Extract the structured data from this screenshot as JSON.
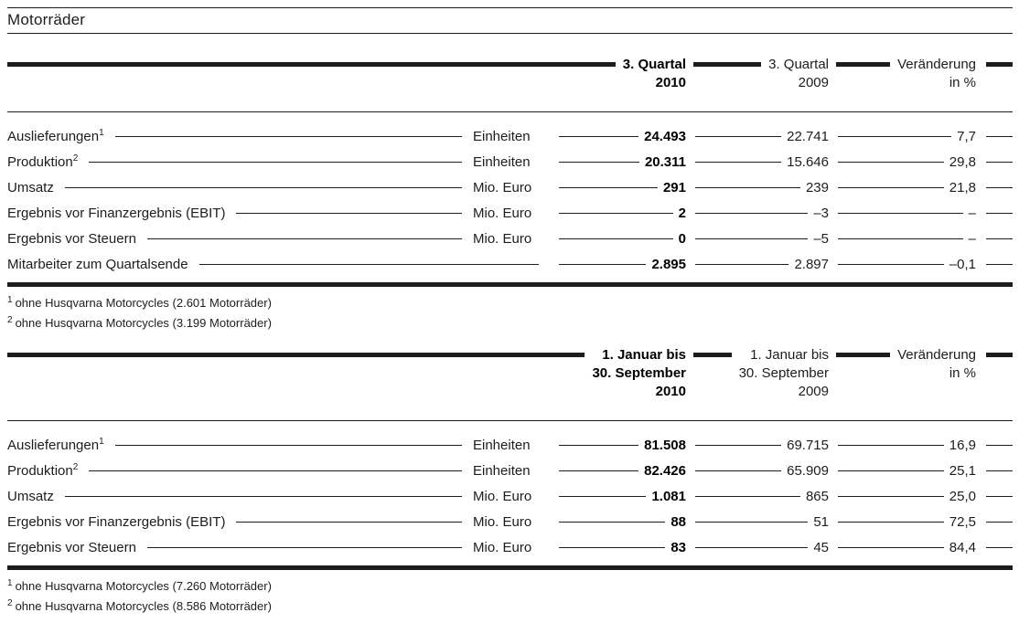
{
  "report": {
    "title": "Motorräder"
  },
  "tables": [
    {
      "columns": [
        {
          "lines": [
            "3. Quartal",
            "2010"
          ]
        },
        {
          "lines": [
            "3. Quartal",
            "2009"
          ]
        },
        {
          "lines": [
            "Veränderung",
            "in %"
          ]
        }
      ],
      "rows": [
        {
          "label": "Auslieferungen",
          "sup": "1",
          "unit": "Einheiten",
          "current": "24.493",
          "prior": "22.741",
          "change": "7,7"
        },
        {
          "label": "Produktion",
          "sup": "2",
          "unit": "Einheiten",
          "current": "20.311",
          "prior": "15.646",
          "change": "29,8"
        },
        {
          "label": "Umsatz",
          "unit": "Mio. Euro",
          "current": "291",
          "prior": "239",
          "change": "21,8"
        },
        {
          "label": "Ergebnis vor Finanzergebnis (EBIT)",
          "unit": "Mio. Euro",
          "current": "2",
          "prior": "–3",
          "change": "–"
        },
        {
          "label": "Ergebnis vor Steuern",
          "unit": "Mio. Euro",
          "current": "0",
          "prior": "–5",
          "change": "–"
        },
        {
          "label": "Mitarbeiter zum Quartalsende",
          "unit": "",
          "current": "2.895",
          "prior": "2.897",
          "change": "–0,1"
        }
      ],
      "footnotes": [
        {
          "sup": "1",
          "text": "ohne Husqvarna Motorcycles (2.601 Motorräder)"
        },
        {
          "sup": "2",
          "text": "ohne Husqvarna Motorcycles (3.199 Motorräder)"
        }
      ]
    },
    {
      "columns": [
        {
          "lines": [
            "1. Januar bis",
            "30. September",
            "2010"
          ]
        },
        {
          "lines": [
            "1. Januar bis",
            "30. September",
            "2009"
          ]
        },
        {
          "lines": [
            "Veränderung",
            "in %"
          ]
        }
      ],
      "rows": [
        {
          "label": "Auslieferungen",
          "sup": "1",
          "unit": "Einheiten",
          "current": "81.508",
          "prior": "69.715",
          "change": "16,9"
        },
        {
          "label": "Produktion",
          "sup": "2",
          "unit": "Einheiten",
          "current": "82.426",
          "prior": "65.909",
          "change": "25,1"
        },
        {
          "label": "Umsatz",
          "unit": "Mio. Euro",
          "current": "1.081",
          "prior": "865",
          "change": "25,0"
        },
        {
          "label": "Ergebnis vor Finanzergebnis (EBIT)",
          "unit": "Mio. Euro",
          "current": "88",
          "prior": "51",
          "change": "72,5"
        },
        {
          "label": "Ergebnis vor Steuern",
          "unit": "Mio. Euro",
          "current": "83",
          "prior": "45",
          "change": "84,4"
        }
      ],
      "footnotes": [
        {
          "sup": "1",
          "text": "ohne Husqvarna Motorcycles (7.260 Motorräder)"
        },
        {
          "sup": "2",
          "text": "ohne Husqvarna Motorcycles (8.586 Motorräder)"
        }
      ]
    }
  ],
  "colors": {
    "text": "#1d1d1b",
    "rule": "#1d1d1b",
    "background": "#ffffff"
  }
}
